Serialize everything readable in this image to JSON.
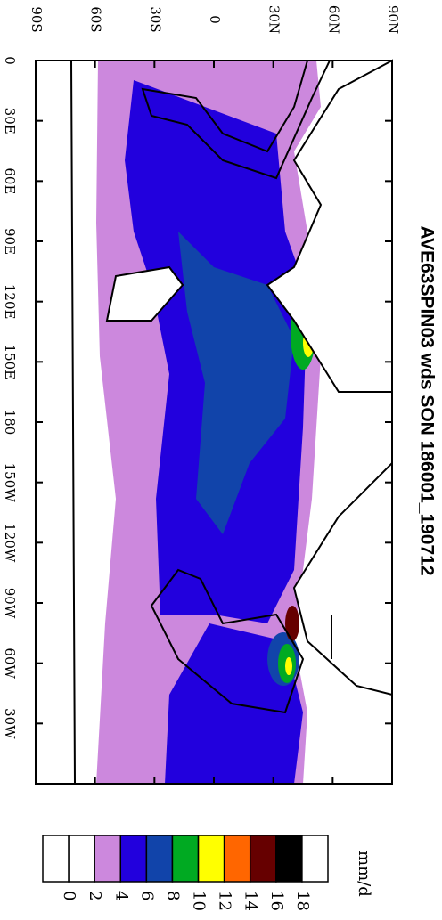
{
  "title": "AVE63SPIN03 wds SON 186001_190712",
  "map": {
    "lat_range": [
      -90,
      90
    ],
    "lon_range": [
      0,
      360
    ],
    "lat_ticks": [
      {
        "value": -90,
        "label": "90S"
      },
      {
        "value": -60,
        "label": "60S"
      },
      {
        "value": -30,
        "label": "30S"
      },
      0,
      {
        "value": 30,
        "label": "30N"
      },
      {
        "value": 60,
        "label": "60N"
      },
      {
        "value": 90,
        "label": "90N"
      }
    ],
    "lon_ticks": [
      0,
      {
        "value": 30,
        "label": "30E"
      },
      {
        "value": 60,
        "label": "60E"
      },
      {
        "value": 90,
        "label": "90E"
      },
      {
        "value": 120,
        "label": "120E"
      },
      {
        "value": 150,
        "label": "150E"
      },
      {
        "value": 180,
        "label": "180"
      },
      {
        "value": 210,
        "label": "150W"
      },
      {
        "value": 240,
        "label": "120W"
      },
      {
        "value": 270,
        "label": "90W"
      },
      {
        "value": 300,
        "label": "60W"
      },
      {
        "value": 330,
        "label": "30W"
      }
    ]
  },
  "colorbar": {
    "unit": "mm/d",
    "levels": [
      0,
      2,
      4,
      6,
      8,
      10,
      12,
      14,
      16,
      18
    ],
    "colors": [
      "#ffffff",
      "#ffffff",
      "#cc88dd",
      "#2200dd",
      "#1144aa",
      "#00aa22",
      "#ffff00",
      "#ff6600",
      "#660000",
      "#000000",
      "#ffffff"
    ]
  }
}
